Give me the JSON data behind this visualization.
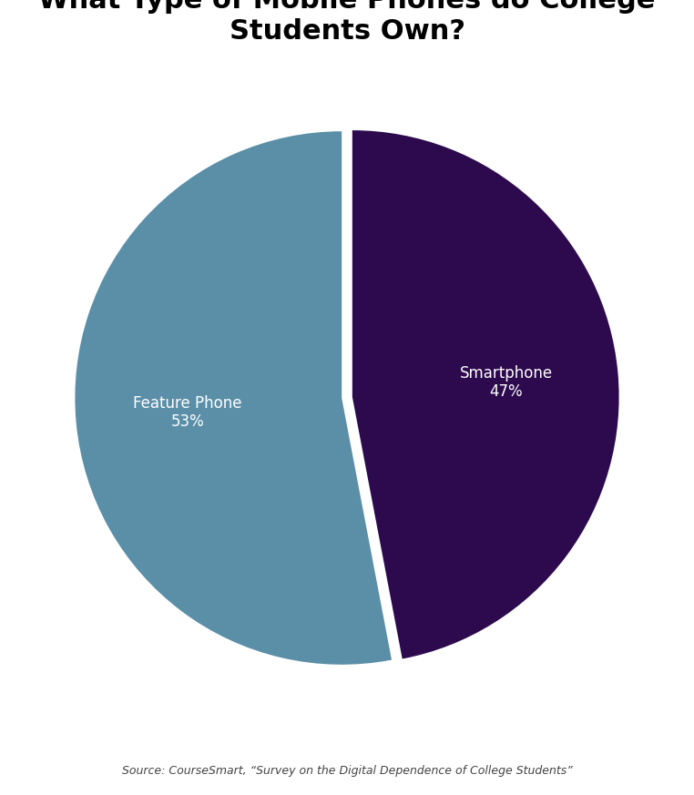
{
  "slices": [
    53,
    47
  ],
  "labels_line1": [
    "Feature Phone",
    "Smartphone"
  ],
  "labels_line2": [
    "53%",
    "47%"
  ],
  "colors": [
    "#5b8fa8",
    "#2d0a4e"
  ],
  "explode": [
    0.02,
    0.02
  ],
  "source_text": "Source: CourseSmart, “Survey on the Digital Dependence of College Students”",
  "background_color": "#ffffff",
  "title_fontsize": 22,
  "label_fontsize": 12,
  "source_fontsize": 9,
  "startangle": 90
}
